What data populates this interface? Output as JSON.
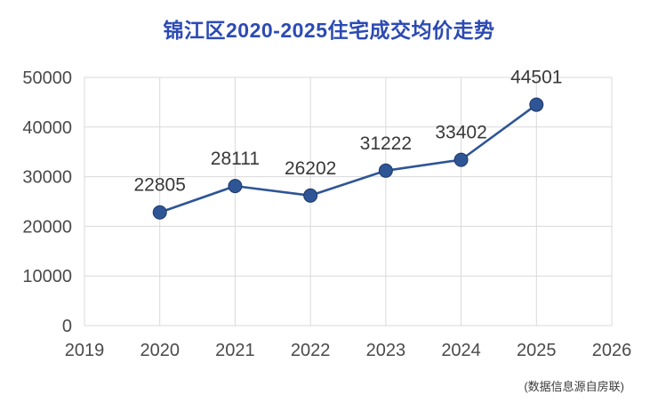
{
  "chart_data": {
    "type": "line",
    "title": "锦江区2020-2025住宅成交均价走势",
    "x": [
      2020,
      2021,
      2022,
      2023,
      2024,
      2025
    ],
    "values": [
      22805,
      28111,
      26202,
      31222,
      33402,
      44501
    ],
    "x_ticks": [
      2019,
      2020,
      2021,
      2022,
      2023,
      2024,
      2025,
      2026
    ],
    "y_ticks": [
      0,
      10000,
      20000,
      30000,
      40000,
      50000
    ],
    "xlim": [
      2019,
      2026
    ],
    "ylim": [
      0,
      50000
    ],
    "grid": true,
    "legend": "none",
    "xlabel": "",
    "ylabel": "",
    "footnote": "(数据信息源自房联)",
    "colors": {
      "background": "#ffffff",
      "title": "#2c4ab4",
      "line": "#2e5596",
      "marker": "#2e5596",
      "marker_edge": "#1f3864",
      "axis_label": "#4a4a4a",
      "data_label": "#383838",
      "grid": "#d9d9d9"
    }
  }
}
